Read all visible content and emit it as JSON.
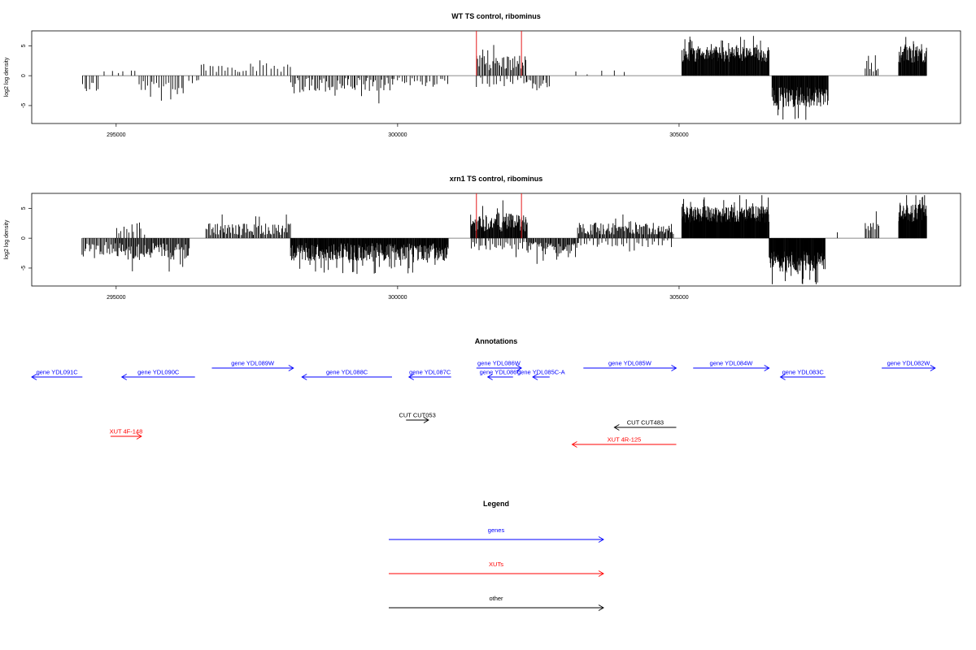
{
  "chart_data": [
    {
      "type": "bar",
      "title": "WT TS control, ribominus",
      "ylabel": "log2 log density",
      "xlabel": "",
      "x_ticks": [
        295000,
        300000,
        305000
      ],
      "y_ticks": [
        -5,
        0,
        5
      ],
      "xlim": [
        293500,
        310000
      ],
      "ylim": [
        -8,
        7.5
      ],
      "grid": false,
      "series": [
        {
          "color": "#000000",
          "segments": [
            {
              "from": 294400,
              "to": 294700,
              "sign": -1,
              "mean": 1.8,
              "jitter": 1.0,
              "step": 40
            },
            {
              "from": 294800,
              "to": 295400,
              "sign": 1,
              "mean": 0.9,
              "jitter": 0.7,
              "step": 110
            },
            {
              "from": 295400,
              "to": 296200,
              "sign": -1,
              "mean": 1.9,
              "jitter": 1.2,
              "step": 40
            },
            {
              "from": 296300,
              "to": 296500,
              "sign": -1,
              "mean": 0.9,
              "jitter": 0.5,
              "step": 60
            },
            {
              "from": 296500,
              "to": 297200,
              "sign": 1,
              "mean": 1.3,
              "jitter": 0.9,
              "step": 55
            },
            {
              "from": 297200,
              "to": 298100,
              "sign": 1,
              "mean": 1.6,
              "jitter": 1.0,
              "step": 60
            },
            {
              "from": 298100,
              "to": 299900,
              "sign": -1,
              "mean": 1.6,
              "jitter": 1.3,
              "step": 28
            },
            {
              "from": 299900,
              "to": 300900,
              "sign": -1,
              "mean": 1.0,
              "jitter": 0.8,
              "step": 45
            },
            {
              "from": 301400,
              "to": 302300,
              "sign": 1,
              "mean": 2.2,
              "jitter": 1.3,
              "step": 22
            },
            {
              "from": 301400,
              "to": 302300,
              "sign": -1,
              "mean": 1.1,
              "jitter": 0.8,
              "step": 60
            },
            {
              "from": 302300,
              "to": 302700,
              "sign": -1,
              "mean": 1.6,
              "jitter": 1.0,
              "step": 30
            },
            {
              "from": 303200,
              "to": 304000,
              "sign": 1,
              "mean": 0.6,
              "jitter": 0.4,
              "step": 200
            },
            {
              "from": 305050,
              "to": 306600,
              "sign": 1,
              "mean": 3.6,
              "jitter": 1.3,
              "step": 9
            },
            {
              "from": 306650,
              "to": 307650,
              "sign": -1,
              "mean": 3.6,
              "jitter": 1.7,
              "step": 9
            },
            {
              "from": 308300,
              "to": 308550,
              "sign": 1,
              "mean": 1.5,
              "jitter": 0.8,
              "step": 30
            },
            {
              "from": 308900,
              "to": 309400,
              "sign": 1,
              "mean": 3.6,
              "jitter": 1.4,
              "step": 9
            }
          ]
        }
      ],
      "markers": [
        {
          "x": 301400,
          "color": "#e41a1c"
        },
        {
          "x": 302200,
          "color": "#e41a1c"
        }
      ],
      "marker_height": 7.5
    },
    {
      "type": "bar",
      "title": "xrn1 TS control, ribominus",
      "ylabel": "log2 log density",
      "xlabel": "",
      "x_ticks": [
        295000,
        300000,
        305000
      ],
      "y_ticks": [
        -5,
        0,
        5
      ],
      "xlim": [
        293500,
        310000
      ],
      "ylim": [
        -8,
        7.5
      ],
      "grid": false,
      "series": [
        {
          "color": "#000000",
          "segments": [
            {
              "from": 294400,
              "to": 295000,
              "sign": -1,
              "mean": 1.7,
              "jitter": 1.1,
              "step": 22
            },
            {
              "from": 295000,
              "to": 295500,
              "sign": 1,
              "mean": 1.6,
              "jitter": 1.2,
              "step": 45
            },
            {
              "from": 295000,
              "to": 296300,
              "sign": -1,
              "mean": 2.2,
              "jitter": 1.4,
              "step": 16
            },
            {
              "from": 296600,
              "to": 298100,
              "sign": 1,
              "mean": 1.5,
              "jitter": 1.0,
              "step": 20
            },
            {
              "from": 298100,
              "to": 300900,
              "sign": -1,
              "mean": 2.3,
              "jitter": 1.5,
              "step": 9
            },
            {
              "from": 301300,
              "to": 302300,
              "sign": 1,
              "mean": 2.6,
              "jitter": 1.5,
              "step": 10
            },
            {
              "from": 301300,
              "to": 302300,
              "sign": -1,
              "mean": 1.2,
              "jitter": 0.8,
              "step": 35
            },
            {
              "from": 302300,
              "to": 303200,
              "sign": -1,
              "mean": 1.7,
              "jitter": 1.1,
              "step": 16
            },
            {
              "from": 303200,
              "to": 304900,
              "sign": 1,
              "mean": 1.6,
              "jitter": 1.0,
              "step": 16
            },
            {
              "from": 303200,
              "to": 304900,
              "sign": -1,
              "mean": 0.9,
              "jitter": 0.6,
              "step": 55
            },
            {
              "from": 305050,
              "to": 306600,
              "sign": 1,
              "mean": 4.0,
              "jitter": 1.4,
              "step": 7
            },
            {
              "from": 306600,
              "to": 307600,
              "sign": -1,
              "mean": 3.9,
              "jitter": 1.8,
              "step": 7
            },
            {
              "from": 307800,
              "to": 307800,
              "sign": 1,
              "mean": 0.8,
              "jitter": 0.2,
              "step": 100
            },
            {
              "from": 308300,
              "to": 308550,
              "sign": 1,
              "mean": 2.0,
              "jitter": 1.0,
              "step": 25
            },
            {
              "from": 308900,
              "to": 309400,
              "sign": 1,
              "mean": 4.2,
              "jitter": 1.5,
              "step": 7
            }
          ]
        }
      ],
      "markers": [
        {
          "x": 301400,
          "color": "#e41a1c"
        },
        {
          "x": 302200,
          "color": "#e41a1c"
        }
      ],
      "marker_height": 7.5
    }
  ],
  "annotations": {
    "title": "Annotations",
    "features": [
      {
        "label": "gene YDL091C",
        "kind": "gene",
        "start": 293500,
        "end": 294400,
        "strand": "-",
        "row": 1
      },
      {
        "label": "gene YDL090C",
        "kind": "gene",
        "start": 295100,
        "end": 296400,
        "strand": "-",
        "row": 1
      },
      {
        "label": "gene YDL089W",
        "kind": "gene",
        "start": 296700,
        "end": 298150,
        "strand": "+",
        "row": 0
      },
      {
        "label": "gene YDL088C",
        "kind": "gene",
        "start": 298300,
        "end": 299900,
        "strand": "-",
        "row": 1
      },
      {
        "label": "gene YDL087C",
        "kind": "gene",
        "start": 300200,
        "end": 300950,
        "strand": "-",
        "row": 1
      },
      {
        "label": "gene YDL086W",
        "kind": "gene",
        "start": 301400,
        "end": 302200,
        "strand": "+",
        "row": 0
      },
      {
        "label": "gene YDL086C",
        "kind": "gene",
        "start": 301600,
        "end": 302050,
        "strand": "-",
        "row": 1
      },
      {
        "label": "gene YDL085C-A",
        "kind": "gene",
        "start": 302400,
        "end": 302700,
        "strand": "-",
        "row": 1
      },
      {
        "label": "gene YDL085W",
        "kind": "gene",
        "start": 303300,
        "end": 304950,
        "strand": "+",
        "row": 0
      },
      {
        "label": "gene YDL084W",
        "kind": "gene",
        "start": 305250,
        "end": 306600,
        "strand": "+",
        "row": 0
      },
      {
        "label": "gene YDL083C",
        "kind": "gene",
        "start": 306800,
        "end": 307600,
        "strand": "-",
        "row": 1
      },
      {
        "label": "gene YDL082W",
        "kind": "gene",
        "start": 308600,
        "end": 309550,
        "strand": "+",
        "row": 0
      },
      {
        "label": "CUT CUT053",
        "kind": "other",
        "start": 300150,
        "end": 300550,
        "strand": "+",
        "row": 2
      },
      {
        "label": "CUT CUT483",
        "kind": "other",
        "start": 303850,
        "end": 304950,
        "strand": "-",
        "row": 3
      },
      {
        "label": "XUT 4F-148",
        "kind": "xut",
        "start": 294900,
        "end": 295450,
        "strand": "+",
        "row": 4
      },
      {
        "label": "XUT 4R-125",
        "kind": "xut",
        "start": 303100,
        "end": 304950,
        "strand": "-",
        "row": 5
      }
    ]
  },
  "legend": {
    "title": "Legend",
    "items": [
      {
        "label": "genes",
        "color": "#0000ff"
      },
      {
        "label": "XUTs",
        "color": "#ff0000"
      },
      {
        "label": "other",
        "color": "#000000"
      }
    ]
  },
  "colors": {
    "gene": "#0000ff",
    "xut": "#ff0000",
    "other": "#000000",
    "axis": "#000000",
    "baseline": "#666666"
  }
}
